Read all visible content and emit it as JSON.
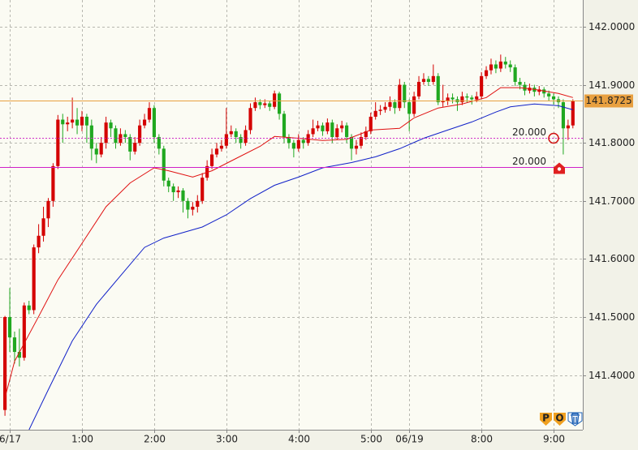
{
  "chart_data": {
    "type": "candlestick",
    "up_color": "#d40000",
    "down_color": "#20a820",
    "xlim": [
      -1.03,
      120.06
    ],
    "ylim": [
      141.306,
      142.046
    ],
    "grid": true,
    "xticks": [
      {
        "value": 1,
        "label": "6/17"
      },
      {
        "value": 16,
        "label": "1:00"
      },
      {
        "value": 31,
        "label": "2:00"
      },
      {
        "value": 46,
        "label": "3:00"
      },
      {
        "value": 61,
        "label": "4:00"
      },
      {
        "value": 76,
        "label": "5:00"
      },
      {
        "value": 84,
        "label": "06/19"
      },
      {
        "value": 99,
        "label": "8:00"
      },
      {
        "value": 114,
        "label": "9:00"
      }
    ],
    "yticks": [
      {
        "value": 141.4,
        "label": "141.4000"
      },
      {
        "value": 141.5,
        "label": "141.5000"
      },
      {
        "value": 141.6,
        "label": "141.6000"
      },
      {
        "value": 141.7,
        "label": "141.7000"
      },
      {
        "value": 141.8,
        "label": "141.8000"
      },
      {
        "value": 141.9,
        "label": "141.9000"
      },
      {
        "value": 142.0,
        "label": "142.0000"
      }
    ],
    "open": [
      141.34,
      141.5,
      141.465,
      141.44,
      141.43,
      141.52,
      141.512,
      141.62,
      141.64,
      141.67,
      141.7,
      141.76,
      141.84,
      141.832,
      141.835,
      141.84,
      141.83,
      141.845,
      141.83,
      141.79,
      141.78,
      141.8,
      141.835,
      141.825,
      141.8,
      141.815,
      141.81,
      141.785,
      141.8,
      141.83,
      141.84,
      141.86,
      141.81,
      141.79,
      141.735,
      141.725,
      141.715,
      141.718,
      141.7,
      141.685,
      141.69,
      141.7,
      141.74,
      141.76,
      141.78,
      141.79,
      141.795,
      141.815,
      141.82,
      141.81,
      141.8,
      141.822,
      141.86,
      141.87,
      141.865,
      141.868,
      141.862,
      141.885,
      141.85,
      141.81,
      141.8,
      141.79,
      141.805,
      141.8,
      141.815,
      141.825,
      141.83,
      141.82,
      141.835,
      141.81,
      141.825,
      141.83,
      141.81,
      141.79,
      141.795,
      141.81,
      141.82,
      141.845,
      141.855,
      141.857,
      141.862,
      141.87,
      141.86,
      141.9,
      141.87,
      141.85,
      141.88,
      141.905,
      141.91,
      141.905,
      141.915,
      141.87,
      141.872,
      141.878,
      141.875,
      141.87,
      141.88,
      141.878,
      141.875,
      141.88,
      141.915,
      141.925,
      141.935,
      141.928,
      141.94,
      141.935,
      141.93,
      141.905,
      141.9,
      141.89,
      141.895,
      141.888,
      141.892,
      141.885,
      141.88,
      141.875,
      141.87,
      141.825,
      141.83
    ],
    "high": [
      141.502,
      141.55,
      141.475,
      141.48,
      141.525,
      141.528,
      141.625,
      141.66,
      141.69,
      141.705,
      141.765,
      141.848,
      141.85,
      141.845,
      141.878,
      141.86,
      141.855,
      141.85,
      141.84,
      141.8,
      141.81,
      141.845,
      141.84,
      141.83,
      141.825,
      141.822,
      141.815,
      141.81,
      141.84,
      141.85,
      141.87,
      141.865,
      141.815,
      141.795,
      141.74,
      141.73,
      141.725,
      141.722,
      141.705,
      141.698,
      141.71,
      141.748,
      141.77,
      141.79,
      141.8,
      141.805,
      141.86,
      141.83,
      141.825,
      141.815,
      141.83,
      141.868,
      141.878,
      141.875,
      141.875,
      141.872,
      141.89,
      141.888,
      141.855,
      141.815,
      141.805,
      141.815,
      141.81,
      141.822,
      141.84,
      141.838,
      141.835,
      141.842,
      141.84,
      141.832,
      141.838,
      141.835,
      141.815,
      141.805,
      141.818,
      141.828,
      141.852,
      141.87,
      141.865,
      141.87,
      141.88,
      141.875,
      141.91,
      141.905,
      141.875,
      141.888,
      141.915,
      141.92,
      141.915,
      141.935,
      141.92,
      141.9,
      141.885,
      141.885,
      141.88,
      141.888,
      141.885,
      141.882,
      141.888,
      141.922,
      141.932,
      141.945,
      141.942,
      141.952,
      141.948,
      141.942,
      141.935,
      141.912,
      141.905,
      141.902,
      141.9,
      141.898,
      141.896,
      141.89,
      141.885,
      141.88,
      141.875,
      141.84,
      141.875
    ],
    "low": [
      141.33,
      141.44,
      141.42,
      141.415,
      141.425,
      141.505,
      141.505,
      141.61,
      141.63,
      141.655,
      141.69,
      141.755,
      141.8,
      141.82,
      141.825,
      141.815,
      141.82,
      141.8,
      141.77,
      141.765,
      141.775,
      141.79,
      141.81,
      141.79,
      141.795,
      141.8,
      141.77,
      141.78,
      141.795,
      141.825,
      141.835,
      141.8,
      141.78,
      141.725,
      141.715,
      141.7,
      141.705,
      141.68,
      141.67,
      141.675,
      141.68,
      141.695,
      141.735,
      141.755,
      141.775,
      141.785,
      141.79,
      141.81,
      141.8,
      141.79,
      141.795,
      141.815,
      141.855,
      141.858,
      141.86,
      141.855,
      141.858,
      141.84,
      141.8,
      141.79,
      141.775,
      141.785,
      141.79,
      141.795,
      141.81,
      141.82,
      141.812,
      141.815,
      141.8,
      141.805,
      141.818,
      141.8,
      141.77,
      141.78,
      141.79,
      141.805,
      141.815,
      141.84,
      141.848,
      141.852,
      141.855,
      141.85,
      141.855,
      141.86,
      141.82,
      141.845,
      141.875,
      141.9,
      141.898,
      141.9,
      141.865,
      141.862,
      141.865,
      141.868,
      141.855,
      141.865,
      141.87,
      141.866,
      141.87,
      141.875,
      141.91,
      141.918,
      141.92,
      141.922,
      141.928,
      141.922,
      141.898,
      141.892,
      141.882,
      141.885,
      141.88,
      141.882,
      141.878,
      141.872,
      141.866,
      141.86,
      141.78,
      141.805,
      141.825
    ],
    "close": [
      141.5,
      141.465,
      141.44,
      141.43,
      141.52,
      141.512,
      141.62,
      141.64,
      141.67,
      141.7,
      141.76,
      141.84,
      141.832,
      141.835,
      141.84,
      141.83,
      141.845,
      141.83,
      141.79,
      141.78,
      141.8,
      141.835,
      141.825,
      141.8,
      141.815,
      141.81,
      141.785,
      141.8,
      141.83,
      141.84,
      141.86,
      141.81,
      141.79,
      141.735,
      141.725,
      141.715,
      141.718,
      141.7,
      141.685,
      141.69,
      141.7,
      141.74,
      141.76,
      141.78,
      141.79,
      141.795,
      141.815,
      141.82,
      141.81,
      141.8,
      141.822,
      141.86,
      141.87,
      141.865,
      141.868,
      141.862,
      141.885,
      141.85,
      141.81,
      141.8,
      141.79,
      141.805,
      141.8,
      141.815,
      141.825,
      141.83,
      141.82,
      141.835,
      141.81,
      141.825,
      141.83,
      141.81,
      141.79,
      141.795,
      141.81,
      141.82,
      141.845,
      141.855,
      141.857,
      141.862,
      141.87,
      141.86,
      141.9,
      141.87,
      141.85,
      141.88,
      141.905,
      141.91,
      141.905,
      141.915,
      141.87,
      141.872,
      141.878,
      141.875,
      141.87,
      141.88,
      141.878,
      141.875,
      141.88,
      141.915,
      141.925,
      141.935,
      141.928,
      141.94,
      141.935,
      141.93,
      141.905,
      141.9,
      141.89,
      141.895,
      141.888,
      141.892,
      141.885,
      141.88,
      141.875,
      141.87,
      141.825,
      141.83,
      141.872
    ],
    "series": [
      {
        "color": "#e01010",
        "x": [
          0,
          2,
          7,
          11,
          16,
          21,
          26,
          31,
          34,
          39,
          43,
          48,
          53,
          56,
          61,
          66,
          71,
          76,
          82,
          85,
          90,
          95,
          100,
          103,
          107,
          110,
          115,
          118
        ],
        "values": [
          141.361,
          141.424,
          141.501,
          141.564,
          141.627,
          141.69,
          141.731,
          141.757,
          141.752,
          141.741,
          141.752,
          141.773,
          141.794,
          141.811,
          141.808,
          141.804,
          141.806,
          141.822,
          141.825,
          141.843,
          141.86,
          141.867,
          141.878,
          141.895,
          141.895,
          141.892,
          141.885,
          141.878
        ]
      },
      {
        "color": "#1020c8",
        "x": [
          5,
          9,
          14,
          19,
          24,
          29,
          33,
          38,
          41,
          46,
          51,
          56,
          61,
          66,
          72,
          77,
          82,
          87,
          92,
          97,
          102,
          105,
          110,
          115,
          118
        ],
        "values": [
          141.306,
          141.375,
          141.459,
          141.522,
          141.571,
          141.62,
          141.636,
          141.648,
          141.655,
          141.676,
          141.704,
          141.727,
          141.741,
          141.757,
          141.766,
          141.776,
          141.79,
          141.808,
          141.822,
          141.836,
          141.853,
          141.862,
          141.867,
          141.864,
          141.857
        ]
      }
    ],
    "price_lines": [
      {
        "value": 141.8725,
        "color": "#e8a040",
        "style": "solid"
      },
      {
        "value": 141.808,
        "color": "#d030c8",
        "style": "dotted",
        "label": "20.000"
      },
      {
        "value": 141.758,
        "color": "#d020c8",
        "style": "solid",
        "label": "20.000"
      }
    ],
    "buttons": [
      "P",
      "O"
    ]
  }
}
